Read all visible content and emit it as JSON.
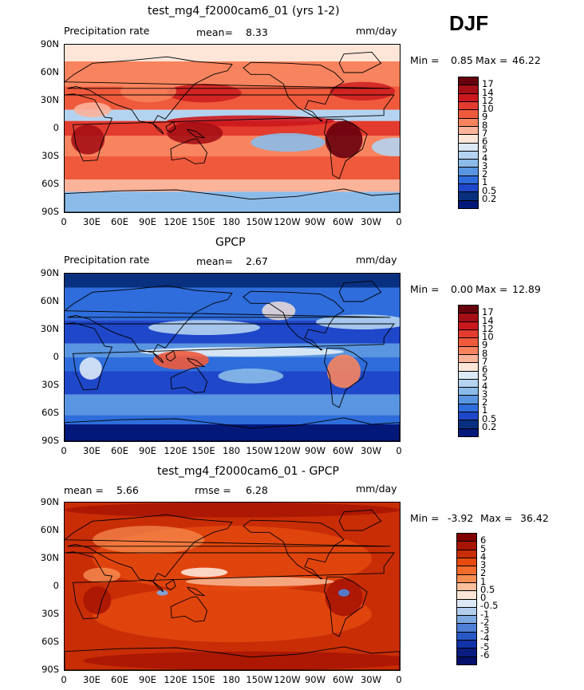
{
  "season": "DJF",
  "panels": [
    {
      "title": "test_mg4_f2000cam6_01 (yrs 1-2)",
      "left_label": "Precipitation rate",
      "mid_key": "mean=",
      "mid_value": "8.33",
      "right_label": "mm/day",
      "min_label": "Min =",
      "min_value": "0.85",
      "max_label": "Max =",
      "max_value": "46.22",
      "map_theme": "model",
      "cbar_labels": [
        "17",
        "14",
        "12",
        "10",
        "9",
        "8",
        "7",
        "6",
        "5",
        "4",
        "3",
        "2",
        "1",
        "0.5",
        "0.2"
      ]
    },
    {
      "title": "GPCP",
      "left_label": "Precipitation rate",
      "mid_key": "mean=",
      "mid_value": "2.67",
      "right_label": "mm/day",
      "min_label": "Min =",
      "min_value": "0.00",
      "max_label": "Max =",
      "max_value": "12.89",
      "map_theme": "obs",
      "cbar_labels": [
        "17",
        "14",
        "12",
        "10",
        "9",
        "8",
        "7",
        "6",
        "5",
        "4",
        "3",
        "2",
        "1",
        "0.5",
        "0.2"
      ]
    },
    {
      "title": "test_mg4_f2000cam6_01 - GPCP",
      "left_label": "mean =",
      "left_value": "5.66",
      "mid_key": "rmse =",
      "mid_value": "6.28",
      "right_label": "mm/day",
      "min_label": "Min =",
      "min_value": "-3.92",
      "max_label": "Max =",
      "max_value": "36.42",
      "map_theme": "diff",
      "cbar_labels": [
        "6",
        "5",
        "4",
        "3",
        "2",
        "1",
        "0.5",
        "0",
        "-0.5",
        "-1",
        "-2",
        "-3",
        "-4",
        "-5",
        "-6"
      ]
    }
  ],
  "lat_ticks": [
    "90N",
    "60N",
    "30N",
    "0",
    "30S",
    "60S",
    "90S"
  ],
  "lon_ticks": [
    "0",
    "30E",
    "60E",
    "90E",
    "120E",
    "150E",
    "180",
    "150W",
    "120W",
    "90W",
    "60W",
    "30W",
    "0"
  ],
  "colors": {
    "precip_scale": [
      "#67000d",
      "#a50f15",
      "#cb181d",
      "#e33b2e",
      "#ef5a3c",
      "#f7845e",
      "#fbb39a",
      "#fde5d8",
      "#dbe9f6",
      "#b4d3f0",
      "#8bbbe9",
      "#5995e0",
      "#2e6ddb",
      "#1f47c9",
      "#08307f",
      "#04187a"
    ],
    "diff_scale": [
      "#7f0000",
      "#a81603",
      "#c92d06",
      "#e64a0f",
      "#f26b2a",
      "#f88e52",
      "#fbbf9c",
      "#fde6d8",
      "#dde8f7",
      "#b2cdee",
      "#7ea8e2",
      "#4f7fd6",
      "#2758c6",
      "#1133a8",
      "#0a1b80",
      "#04106a"
    ]
  }
}
